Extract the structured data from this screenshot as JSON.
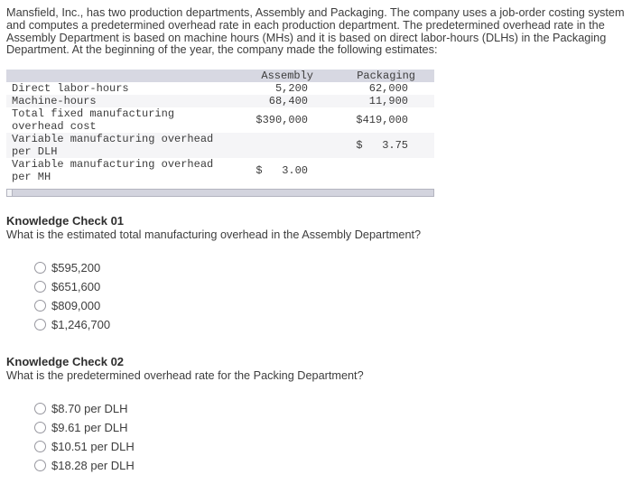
{
  "intro": "Mansfield, Inc., has two production departments, Assembly and Packaging. The company uses a job-order costing system and computes a predetermined overhead rate in each production department. The predetermined overhead rate in the Assembly Department is based on machine hours (MHs) and it is based on direct labor-hours (DLHs) in the Packaging Department. At the beginning of the year, the company made the following estimates:",
  "table": {
    "columns": [
      "",
      "Assembly",
      "Packaging"
    ],
    "rows": [
      {
        "label": "Direct labor-hours",
        "assembly": "5,200",
        "packaging": "62,000"
      },
      {
        "label": "Machine-hours",
        "assembly": "68,400",
        "packaging": "11,900"
      },
      {
        "label": "Total fixed manufacturing overhead cost",
        "assembly": "$390,000",
        "packaging": "$419,000"
      },
      {
        "label": "Variable manufacturing overhead per DLH",
        "assembly": "",
        "packaging": "$   3.75"
      },
      {
        "label": "Variable manufacturing overhead per MH",
        "assembly": "$   3.00",
        "packaging": ""
      }
    ]
  },
  "knowledge_checks": [
    {
      "title": "Knowledge Check 01",
      "question": "What is the estimated total manufacturing overhead in the Assembly Department?",
      "options": [
        "$595,200",
        "$651,600",
        "$809,000",
        "$1,246,700"
      ]
    },
    {
      "title": "Knowledge Check 02",
      "question": "What is the predetermined overhead rate for the Packing Department?",
      "options": [
        "$8.70 per DLH",
        "$9.61 per DLH",
        "$10.51 per DLH",
        "$18.28 per DLH"
      ]
    }
  ],
  "colors": {
    "table_header_bg": "#d7d8e2",
    "table_alt_row_bg": "#f5f5f7"
  }
}
